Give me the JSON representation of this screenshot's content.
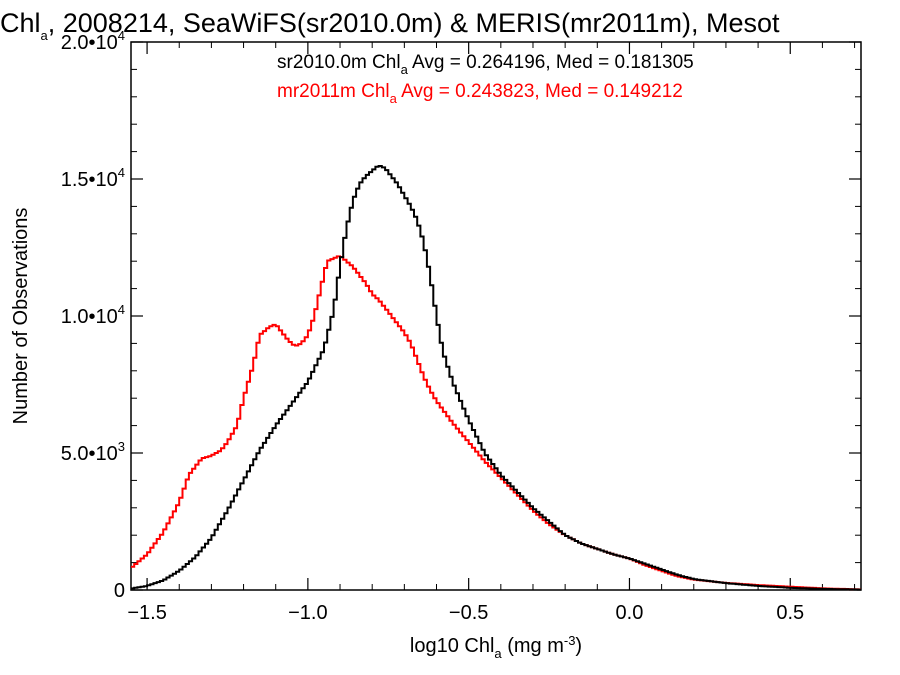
{
  "chart_data": {
    "type": "line",
    "style": "step-histogram",
    "title": {
      "prefix": "Chl",
      "subscript": "a",
      "suffix": ", 2008214, SeaWiFS(sr2010.0m) & MERIS(mr2011m), Mesot"
    },
    "xlabel": {
      "prefix": "log10 Chl",
      "subscript": "a",
      "middle": " (mg m",
      "superscript": "-3",
      "suffix": ")"
    },
    "ylabel": "Number of Observations",
    "xlim": [
      -1.55,
      0.72
    ],
    "ylim": [
      0,
      20000
    ],
    "x_ticks": [
      {
        "value": -1.5,
        "label": "−1.5"
      },
      {
        "value": -1.0,
        "label": "−1.0"
      },
      {
        "value": -0.5,
        "label": "−0.5"
      },
      {
        "value": 0.0,
        "label": "0.0"
      },
      {
        "value": 0.5,
        "label": "0.5"
      }
    ],
    "y_ticks": [
      {
        "value": 0,
        "mantissa": "0",
        "exponent": ""
      },
      {
        "value": 5000,
        "mantissa": "5.0•10",
        "exponent": "3"
      },
      {
        "value": 10000,
        "mantissa": "1.0•10",
        "exponent": "4"
      },
      {
        "value": 15000,
        "mantissa": "1.5•10",
        "exponent": "4"
      },
      {
        "value": 20000,
        "mantissa": "2.0•10",
        "exponent": "4"
      }
    ],
    "legend_position": "top-right",
    "series": [
      {
        "name": "sr2010.0m",
        "color": "#000000",
        "legend": {
          "prefix": "sr2010.0m Chl",
          "subscript": "a",
          "suffix": " Avg = 0.264196, Med = 0.181305"
        },
        "x": [
          -1.55,
          -1.5,
          -1.45,
          -1.4,
          -1.35,
          -1.3,
          -1.25,
          -1.2,
          -1.15,
          -1.1,
          -1.05,
          -1.0,
          -0.95,
          -0.92,
          -0.9,
          -0.88,
          -0.86,
          -0.84,
          -0.82,
          -0.8,
          -0.78,
          -0.76,
          -0.74,
          -0.72,
          -0.7,
          -0.68,
          -0.66,
          -0.64,
          -0.62,
          -0.6,
          -0.58,
          -0.55,
          -0.5,
          -0.45,
          -0.4,
          -0.35,
          -0.3,
          -0.25,
          -0.2,
          -0.15,
          -0.1,
          -0.05,
          0.0,
          0.05,
          0.1,
          0.15,
          0.2,
          0.3,
          0.4,
          0.5,
          0.6,
          0.72
        ],
        "y": [
          50,
          150,
          350,
          700,
          1200,
          1900,
          2900,
          4000,
          5100,
          6000,
          6800,
          7600,
          8800,
          10200,
          11800,
          13200,
          14200,
          14800,
          15100,
          15300,
          15500,
          15400,
          15100,
          14800,
          14400,
          14000,
          13500,
          12700,
          11500,
          10000,
          8700,
          7600,
          6200,
          5000,
          4200,
          3600,
          3000,
          2500,
          2000,
          1700,
          1500,
          1300,
          1150,
          950,
          750,
          550,
          400,
          250,
          150,
          80,
          40,
          15
        ]
      },
      {
        "name": "mr2011m",
        "color": "#ff0000",
        "legend": {
          "prefix": "mr2011m Chl",
          "subscript": "a",
          "suffix": " Avg = 0.243823, Med = 0.149212"
        },
        "x": [
          -1.55,
          -1.5,
          -1.45,
          -1.4,
          -1.37,
          -1.33,
          -1.3,
          -1.27,
          -1.25,
          -1.22,
          -1.2,
          -1.17,
          -1.15,
          -1.12,
          -1.1,
          -1.08,
          -1.06,
          -1.04,
          -1.02,
          -1.0,
          -0.98,
          -0.96,
          -0.94,
          -0.92,
          -0.9,
          -0.88,
          -0.86,
          -0.84,
          -0.82,
          -0.8,
          -0.78,
          -0.76,
          -0.74,
          -0.72,
          -0.7,
          -0.68,
          -0.66,
          -0.64,
          -0.62,
          -0.6,
          -0.55,
          -0.5,
          -0.45,
          -0.4,
          -0.35,
          -0.3,
          -0.25,
          -0.2,
          -0.15,
          -0.1,
          -0.05,
          0.0,
          0.05,
          0.1,
          0.15,
          0.2,
          0.3,
          0.4,
          0.5,
          0.6,
          0.72
        ],
        "y": [
          800,
          1300,
          2100,
          3200,
          4200,
          4800,
          4900,
          5100,
          5400,
          6000,
          7000,
          8200,
          9300,
          9600,
          9700,
          9400,
          9100,
          8900,
          9000,
          9300,
          10000,
          11000,
          12000,
          12100,
          12200,
          12000,
          11800,
          11500,
          11200,
          10800,
          10600,
          10300,
          10000,
          9700,
          9400,
          9000,
          8400,
          7800,
          7300,
          6900,
          6100,
          5400,
          4700,
          4100,
          3500,
          2900,
          2400,
          2000,
          1700,
          1500,
          1300,
          1150,
          900,
          700,
          500,
          380,
          260,
          180,
          120,
          60,
          20
        ]
      }
    ]
  }
}
